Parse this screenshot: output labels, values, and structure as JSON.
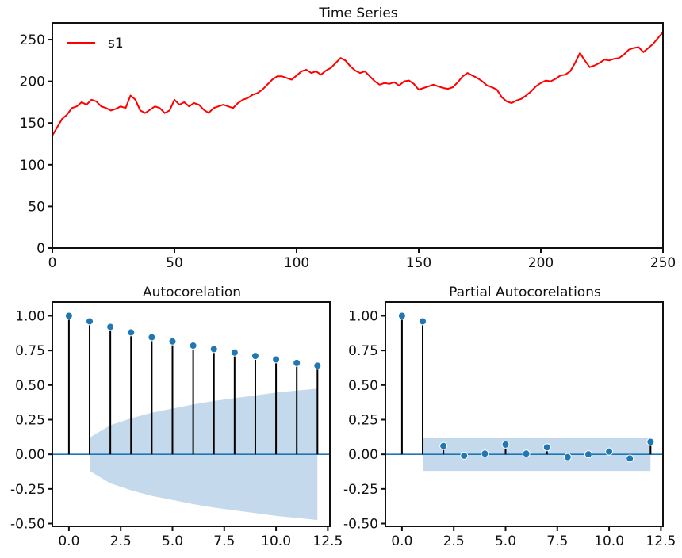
{
  "chart_data": [
    {
      "type": "line",
      "title": "Time Series",
      "xlabel": "",
      "ylabel": "",
      "xlim": [
        0,
        250
      ],
      "ylim": [
        0,
        270
      ],
      "grid": false,
      "legend_position": "top-left",
      "x_ticks": [
        "0",
        "50",
        "100",
        "150",
        "200",
        "250"
      ],
      "y_ticks": [
        "0",
        "50",
        "100",
        "150",
        "200",
        "250"
      ],
      "x_tick_values": [
        0,
        50,
        100,
        150,
        200,
        250
      ],
      "y_tick_values": [
        0,
        50,
        100,
        150,
        200,
        250
      ],
      "series": [
        {
          "name": "s1",
          "color": "#ff0000",
          "x": [
            0,
            2,
            4,
            6,
            8,
            10,
            12,
            14,
            16,
            18,
            20,
            22,
            24,
            26,
            28,
            30,
            32,
            34,
            36,
            38,
            40,
            42,
            44,
            46,
            48,
            50,
            52,
            54,
            56,
            58,
            60,
            62,
            64,
            66,
            68,
            70,
            72,
            74,
            76,
            78,
            80,
            82,
            84,
            86,
            88,
            90,
            92,
            94,
            96,
            98,
            100,
            102,
            104,
            106,
            108,
            110,
            112,
            114,
            116,
            118,
            120,
            122,
            124,
            126,
            128,
            130,
            132,
            134,
            136,
            138,
            140,
            142,
            144,
            146,
            148,
            150,
            152,
            154,
            156,
            158,
            160,
            162,
            164,
            166,
            168,
            170,
            172,
            174,
            176,
            178,
            180,
            182,
            184,
            186,
            188,
            190,
            192,
            194,
            196,
            198,
            200,
            202,
            204,
            206,
            208,
            210,
            212,
            214,
            216,
            218,
            220,
            222,
            224,
            226,
            228,
            230,
            232,
            234,
            236,
            238,
            240,
            242,
            244,
            246,
            248,
            250
          ],
          "y": [
            135,
            145,
            155,
            160,
            168,
            170,
            175,
            172,
            178,
            176,
            170,
            168,
            165,
            167,
            170,
            168,
            183,
            178,
            165,
            162,
            166,
            170,
            168,
            162,
            165,
            178,
            172,
            175,
            170,
            174,
            172,
            166,
            162,
            168,
            170,
            172,
            170,
            168,
            174,
            178,
            180,
            184,
            186,
            190,
            196,
            202,
            206,
            206,
            204,
            202,
            207,
            212,
            214,
            210,
            212,
            208,
            213,
            216,
            222,
            228,
            225,
            218,
            213,
            210,
            212,
            206,
            200,
            196,
            198,
            197,
            199,
            195,
            200,
            201,
            197,
            190,
            192,
            194,
            196,
            194,
            192,
            191,
            193,
            199,
            206,
            210,
            207,
            204,
            200,
            195,
            193,
            190,
            181,
            176,
            174,
            177,
            179,
            183,
            188,
            194,
            198,
            201,
            200,
            203,
            207,
            208,
            212,
            222,
            234,
            225,
            217,
            219,
            222,
            226,
            225,
            227,
            228,
            232,
            238,
            240,
            241,
            235,
            240,
            245,
            252,
            259
          ]
        }
      ]
    },
    {
      "type": "stem",
      "title": "Autocorelation",
      "xlim": [
        -0.8,
        12.6
      ],
      "ylim": [
        -0.52,
        1.1
      ],
      "x_ticks": [
        "0.0",
        "2.5",
        "5.0",
        "7.5",
        "10.0",
        "12.5"
      ],
      "y_ticks": [
        "-0.50",
        "-0.25",
        "0.00",
        "0.25",
        "0.50",
        "0.75",
        "1.00"
      ],
      "x_tick_values": [
        0,
        2.5,
        5,
        7.5,
        10,
        12.5
      ],
      "y_tick_values": [
        -0.5,
        -0.25,
        0,
        0.25,
        0.5,
        0.75,
        1
      ],
      "lags": [
        0,
        1,
        2,
        3,
        4,
        5,
        6,
        7,
        8,
        9,
        10,
        11,
        12
      ],
      "values": [
        1.0,
        0.96,
        0.92,
        0.88,
        0.845,
        0.815,
        0.785,
        0.76,
        0.735,
        0.71,
        0.685,
        0.66,
        0.64
      ],
      "confidence_band": {
        "lags": [
          1,
          2,
          3,
          4,
          5,
          6,
          7,
          8,
          9,
          10,
          11,
          12
        ],
        "upper": [
          0.12,
          0.21,
          0.26,
          0.3,
          0.33,
          0.36,
          0.385,
          0.405,
          0.425,
          0.445,
          0.46,
          0.475
        ],
        "color": "#c5d9ec"
      },
      "marker_color": "#1f77b4"
    },
    {
      "type": "stem",
      "title": "Partial Autocorelations",
      "xlim": [
        -0.8,
        12.6
      ],
      "ylim": [
        -0.52,
        1.1
      ],
      "x_ticks": [
        "0.0",
        "2.5",
        "5.0",
        "7.5",
        "10.0",
        "12.5"
      ],
      "y_ticks": [
        "-0.50",
        "-0.25",
        "0.00",
        "0.25",
        "0.50",
        "0.75",
        "1.00"
      ],
      "x_tick_values": [
        0,
        2.5,
        5,
        7.5,
        10,
        12.5
      ],
      "y_tick_values": [
        -0.5,
        -0.25,
        0,
        0.25,
        0.5,
        0.75,
        1
      ],
      "lags": [
        0,
        1,
        2,
        3,
        4,
        5,
        6,
        7,
        8,
        9,
        10,
        11,
        12
      ],
      "values": [
        1.0,
        0.96,
        0.06,
        -0.01,
        0.005,
        0.07,
        0.005,
        0.05,
        -0.02,
        0.0,
        0.02,
        -0.03,
        0.09
      ],
      "confidence_band": {
        "lags": [
          1,
          12
        ],
        "upper": [
          0.12,
          0.12
        ],
        "color": "#c5d9ec"
      },
      "marker_color": "#1f77b4"
    }
  ]
}
